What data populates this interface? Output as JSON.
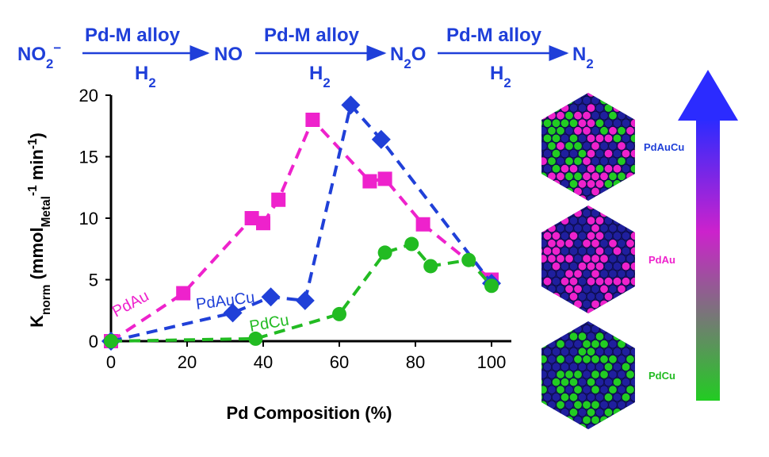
{
  "scheme": {
    "species": [
      "NO2",
      "NO",
      "N2O",
      "N2"
    ],
    "nitrite_charge": "−",
    "catalyst_label": "Pd-M alloy",
    "reductant_label": "H2",
    "color": "#1f3fd9"
  },
  "chart_data": {
    "type": "line",
    "xlabel": "Pd Composition (%)",
    "ylabel": "Knorm (mmolMetal-1 min-1)",
    "xlim": [
      0,
      100
    ],
    "ylim": [
      0,
      20
    ],
    "xticks": [
      0,
      20,
      40,
      60,
      80,
      100
    ],
    "yticks": [
      0,
      5,
      10,
      15,
      20
    ],
    "grid": false,
    "legend": "inline labels",
    "series": [
      {
        "name": "PdAu",
        "color": "#ee22cc",
        "marker": "square",
        "x": [
          0,
          19,
          37,
          40,
          44,
          53,
          68,
          72,
          82,
          100
        ],
        "y": [
          0,
          3.9,
          10.0,
          9.6,
          11.5,
          18.0,
          13.0,
          13.2,
          9.5,
          5.0
        ]
      },
      {
        "name": "PdAuCu",
        "color": "#2040d8",
        "marker": "diamond",
        "x": [
          0,
          32,
          42,
          51,
          63,
          71,
          100
        ],
        "y": [
          0,
          2.3,
          3.6,
          3.3,
          19.2,
          16.4,
          4.7
        ]
      },
      {
        "name": "PdCu",
        "color": "#22bb22",
        "marker": "circle",
        "x": [
          0,
          38,
          60,
          72,
          79,
          84,
          94,
          100
        ],
        "y": [
          0,
          0.2,
          2.2,
          7.2,
          7.9,
          6.1,
          6.6,
          4.5
        ]
      }
    ]
  },
  "nanoparticles": [
    {
      "label": "PdAuCu",
      "label_color": "#2040d8",
      "colors": [
        "#1f1f9e",
        "#ee22cc",
        "#22cc22"
      ]
    },
    {
      "label": "PdAu",
      "label_color": "#ee22cc",
      "colors": [
        "#1f1f9e",
        "#ee22cc"
      ]
    },
    {
      "label": "PdCu",
      "label_color": "#22bb22",
      "colors": [
        "#1f1f9e",
        "#22cc22"
      ]
    }
  ],
  "activity_arrow": {
    "top_color": "#2b2bff",
    "mid_color": "#cc22cc",
    "bottom_color": "#22cc22"
  }
}
